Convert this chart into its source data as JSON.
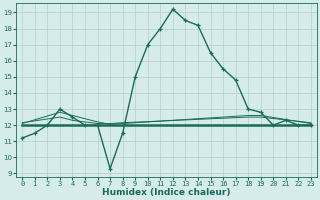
{
  "xlabel": "Humidex (Indice chaleur)",
  "bg_color": "#d5ecea",
  "grid_color": "#b0d0ce",
  "line_color": "#1a6b5a",
  "xlim": [
    -0.5,
    23.5
  ],
  "ylim": [
    8.8,
    19.6
  ],
  "yticks": [
    9,
    10,
    11,
    12,
    13,
    14,
    15,
    16,
    17,
    18,
    19
  ],
  "xticks": [
    0,
    1,
    2,
    3,
    4,
    5,
    6,
    7,
    8,
    9,
    10,
    11,
    12,
    13,
    14,
    15,
    16,
    17,
    18,
    19,
    20,
    21,
    22,
    23
  ],
  "series": [
    {
      "x": [
        0,
        1,
        2,
        3,
        4,
        5,
        6,
        7,
        8,
        9,
        10,
        11,
        12,
        13,
        14,
        15,
        16,
        17,
        18,
        19,
        20,
        21,
        22,
        23
      ],
      "y": [
        11.2,
        11.5,
        12.0,
        13.0,
        12.5,
        12.0,
        12.0,
        9.3,
        11.5,
        15.0,
        17.0,
        18.0,
        19.2,
        18.5,
        18.2,
        16.5,
        15.5,
        14.8,
        13.0,
        12.8,
        12.0,
        12.3,
        12.0,
        12.0
      ],
      "marker": true,
      "linewidth": 1.0
    },
    {
      "x": [
        0,
        23
      ],
      "y": [
        12.0,
        12.0
      ],
      "marker": false,
      "linewidth": 1.8
    },
    {
      "x": [
        0,
        3,
        6,
        7,
        8,
        18,
        19,
        23
      ],
      "y": [
        12.1,
        12.8,
        12.2,
        12.05,
        12.1,
        12.6,
        12.6,
        12.1
      ],
      "marker": false,
      "linewidth": 0.7
    },
    {
      "x": [
        0,
        3,
        4,
        6,
        7,
        8,
        18,
        19,
        23
      ],
      "y": [
        12.15,
        12.5,
        12.3,
        12.1,
        12.1,
        12.15,
        12.5,
        12.5,
        12.15
      ],
      "marker": false,
      "linewidth": 0.7
    }
  ]
}
